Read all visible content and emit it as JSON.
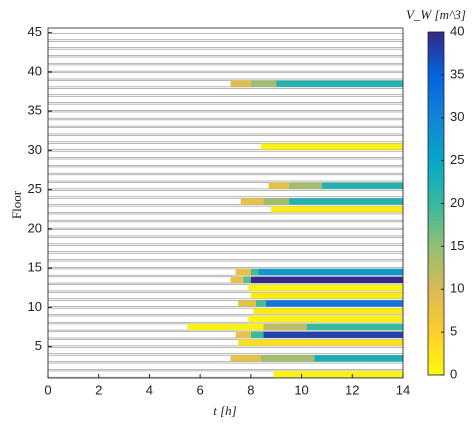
{
  "chart_data": {
    "type": "timeline",
    "xlabel": "t [h]",
    "ylabel": "Floor",
    "colorbar_label": "V_W [m^3]",
    "xlim": [
      0,
      14
    ],
    "xticks": [
      0,
      2,
      4,
      6,
      8,
      10,
      12,
      14
    ],
    "ylim": [
      1,
      45.6
    ],
    "yticks": [
      5,
      10,
      15,
      20,
      25,
      30,
      35,
      40,
      45
    ],
    "clim": [
      0,
      40
    ],
    "cticks": [
      0,
      5,
      10,
      15,
      20,
      25,
      30,
      35,
      40
    ],
    "colormap": [
      "#f9fb0e",
      "#fcce2e",
      "#d9ba56",
      "#92bf73",
      "#38b99e",
      "#06a7c6",
      "#1485d4",
      "#0363e1",
      "#352a87"
    ],
    "floors": [
      1,
      2,
      3,
      4,
      5,
      6,
      7,
      8,
      9,
      10,
      11,
      12,
      13,
      14,
      15,
      16,
      17,
      18,
      19,
      20,
      21,
      22,
      23,
      24,
      25,
      26,
      27,
      28,
      29,
      30,
      31,
      32,
      33,
      34,
      35,
      36,
      37,
      38,
      39,
      40,
      41,
      42,
      43,
      44
    ],
    "segments": [
      {
        "floor": 38,
        "start": 7.2,
        "end": 8.0,
        "value": 9
      },
      {
        "floor": 38,
        "start": 8.0,
        "end": 9.0,
        "value": 14
      },
      {
        "floor": 38,
        "start": 9.0,
        "end": 14,
        "value": 22
      },
      {
        "floor": 30,
        "start": 8.4,
        "end": 14,
        "value": 1
      },
      {
        "floor": 25,
        "start": 8.7,
        "end": 9.5,
        "value": 8
      },
      {
        "floor": 25,
        "start": 9.5,
        "end": 10.8,
        "value": 14
      },
      {
        "floor": 25,
        "start": 10.8,
        "end": 14,
        "value": 22
      },
      {
        "floor": 23,
        "start": 7.6,
        "end": 8.5,
        "value": 8
      },
      {
        "floor": 23,
        "start": 8.5,
        "end": 9.5,
        "value": 14
      },
      {
        "floor": 23,
        "start": 9.5,
        "end": 14,
        "value": 22
      },
      {
        "floor": 22,
        "start": 8.8,
        "end": 14,
        "value": 2
      },
      {
        "floor": 14,
        "start": 7.4,
        "end": 8.0,
        "value": 8
      },
      {
        "floor": 14,
        "start": 8.0,
        "end": 8.3,
        "value": 19
      },
      {
        "floor": 14,
        "start": 8.3,
        "end": 14,
        "value": 27
      },
      {
        "floor": 13,
        "start": 7.2,
        "end": 7.7,
        "value": 8
      },
      {
        "floor": 13,
        "start": 7.7,
        "end": 8.0,
        "value": 18
      },
      {
        "floor": 13,
        "start": 8.0,
        "end": 14,
        "value": 40
      },
      {
        "floor": 12,
        "start": 7.9,
        "end": 14,
        "value": 1
      },
      {
        "floor": 11,
        "start": 8.0,
        "end": 14,
        "value": 2
      },
      {
        "floor": 10,
        "start": 7.5,
        "end": 8.2,
        "value": 8
      },
      {
        "floor": 10,
        "start": 8.2,
        "end": 8.6,
        "value": 19
      },
      {
        "floor": 10,
        "start": 8.6,
        "end": 14,
        "value": 32
      },
      {
        "floor": 9,
        "start": 8.1,
        "end": 14,
        "value": 2
      },
      {
        "floor": 8,
        "start": 7.9,
        "end": 14,
        "value": 1
      },
      {
        "floor": 7,
        "start": 5.5,
        "end": 8.5,
        "value": 1
      },
      {
        "floor": 7,
        "start": 8.5,
        "end": 10.2,
        "value": 12
      },
      {
        "floor": 7,
        "start": 10.2,
        "end": 14,
        "value": 20
      },
      {
        "floor": 6,
        "start": 7.4,
        "end": 8.0,
        "value": 8
      },
      {
        "floor": 6,
        "start": 8.0,
        "end": 8.5,
        "value": 20
      },
      {
        "floor": 6,
        "start": 8.5,
        "end": 14,
        "value": 38
      },
      {
        "floor": 5,
        "start": 7.5,
        "end": 14,
        "value": 3
      },
      {
        "floor": 3,
        "start": 7.2,
        "end": 8.4,
        "value": 8
      },
      {
        "floor": 3,
        "start": 8.4,
        "end": 10.5,
        "value": 14
      },
      {
        "floor": 3,
        "start": 10.5,
        "end": 14,
        "value": 23
      },
      {
        "floor": 1,
        "start": 8.9,
        "end": 14,
        "value": 1
      }
    ]
  }
}
